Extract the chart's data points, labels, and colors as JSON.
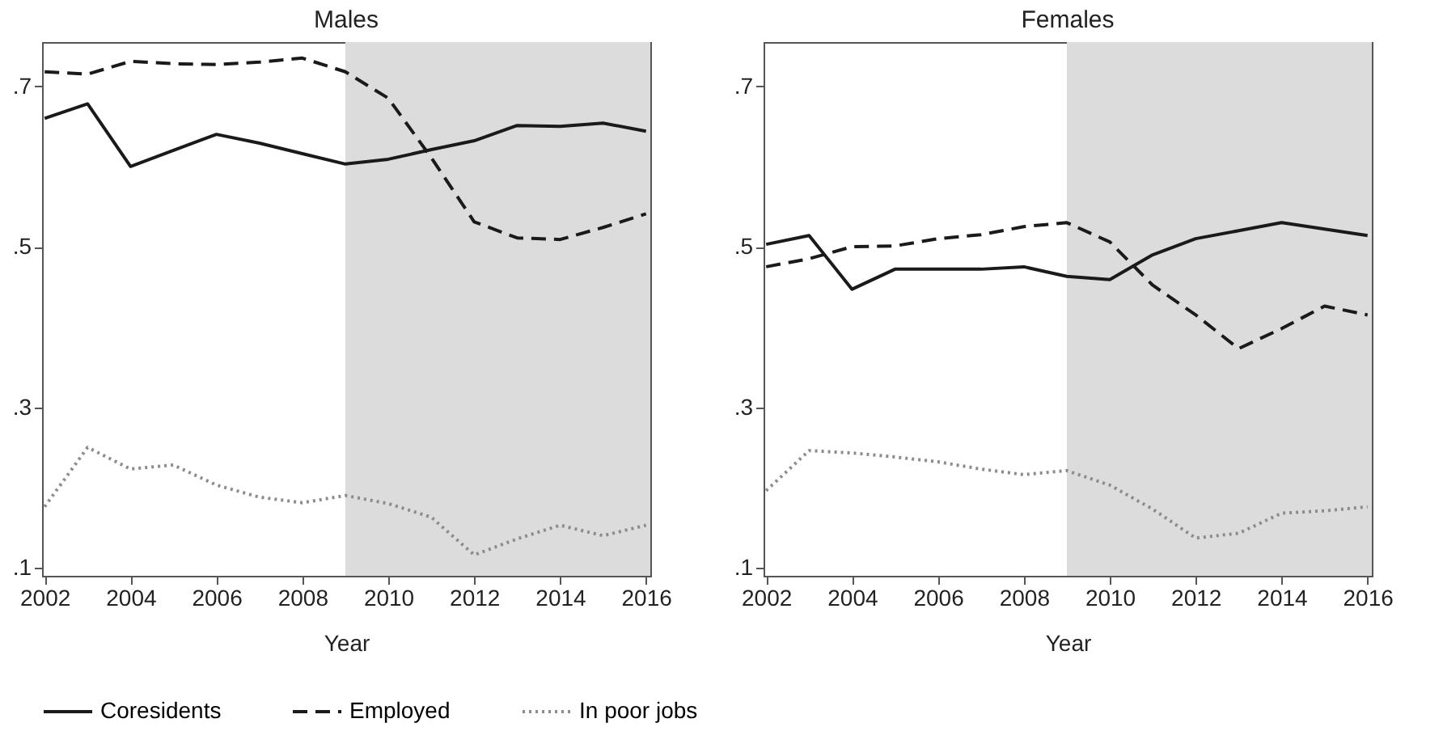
{
  "chart_data": [
    {
      "type": "line",
      "title": "Males",
      "xlabel": "Year",
      "x": [
        2002,
        2003,
        2004,
        2005,
        2006,
        2007,
        2008,
        2009,
        2010,
        2011,
        2012,
        2013,
        2014,
        2015,
        2016
      ],
      "xlim": [
        2001.94,
        2016.1
      ],
      "xticks": [
        2002,
        2004,
        2006,
        2008,
        2010,
        2012,
        2014,
        2016
      ],
      "ylim": [
        0.09,
        0.755
      ],
      "yticks": [
        {
          "value": 0.1,
          "label": ".1"
        },
        {
          "value": 0.3,
          "label": ".3"
        },
        {
          "value": 0.5,
          "label": ".5"
        },
        {
          "value": 0.7,
          "label": ".7"
        }
      ],
      "grid": false,
      "legend": "bottom",
      "tick_labels": "x",
      "bands": [
        {
          "axis": "x",
          "from": 2009,
          "to": 2016.1,
          "color": "#dcdcdc"
        }
      ],
      "series": [
        {
          "name": "Coresidents",
          "color": "#1a1a1a",
          "line_style": "solid",
          "values": [
            0.66,
            0.678,
            0.6,
            0.62,
            0.64,
            0.629,
            0.616,
            0.603,
            0.609,
            0.621,
            0.632,
            0.651,
            0.65,
            0.654,
            0.644
          ]
        },
        {
          "name": "Employed",
          "color": "#1a1a1a",
          "line_style": "dashed",
          "values": [
            0.718,
            0.715,
            0.731,
            0.728,
            0.727,
            0.73,
            0.735,
            0.718,
            0.685,
            0.611,
            0.531,
            0.511,
            0.509,
            0.524,
            0.541
          ]
        },
        {
          "name": "In poor jobs",
          "color": "#8c8c8c",
          "line_style": "dotted",
          "values": [
            0.176,
            0.25,
            0.223,
            0.228,
            0.203,
            0.188,
            0.181,
            0.19,
            0.18,
            0.163,
            0.116,
            0.136,
            0.153,
            0.14,
            0.153
          ]
        }
      ]
    },
    {
      "type": "line",
      "title": "Females",
      "xlabel": "Year",
      "x": [
        2002,
        2003,
        2004,
        2005,
        2006,
        2007,
        2008,
        2009,
        2010,
        2011,
        2012,
        2013,
        2014,
        2015,
        2016
      ],
      "xlim": [
        2001.94,
        2016.1
      ],
      "xticks": [
        2002,
        2004,
        2006,
        2008,
        2010,
        2012,
        2014,
        2016
      ],
      "ylim": [
        0.09,
        0.755
      ],
      "yticks": [
        {
          "value": 0.1,
          "label": ".1"
        },
        {
          "value": 0.3,
          "label": ".3"
        },
        {
          "value": 0.5,
          "label": ".5"
        },
        {
          "value": 0.7,
          "label": ".7"
        }
      ],
      "grid": false,
      "legend": "bottom",
      "bands": [
        {
          "axis": "x",
          "from": 2009,
          "to": 2016.1,
          "color": "#dcdcdc"
        }
      ],
      "series": [
        {
          "name": "Coresidents",
          "color": "#1a1a1a",
          "line_style": "solid",
          "values": [
            0.503,
            0.514,
            0.447,
            0.472,
            0.472,
            0.472,
            0.475,
            0.463,
            0.459,
            0.49,
            0.51,
            0.52,
            0.53,
            0.522,
            0.514
          ]
        },
        {
          "name": "Employed",
          "color": "#1a1a1a",
          "line_style": "dashed",
          "values": [
            0.475,
            0.485,
            0.5,
            0.501,
            0.51,
            0.515,
            0.525,
            0.53,
            0.506,
            0.452,
            0.415,
            0.373,
            0.398,
            0.426,
            0.415
          ]
        },
        {
          "name": "In poor jobs",
          "color": "#8c8c8c",
          "line_style": "dotted",
          "values": [
            0.196,
            0.246,
            0.243,
            0.238,
            0.232,
            0.223,
            0.216,
            0.221,
            0.203,
            0.173,
            0.137,
            0.143,
            0.168,
            0.171,
            0.176
          ]
        }
      ]
    }
  ]
}
